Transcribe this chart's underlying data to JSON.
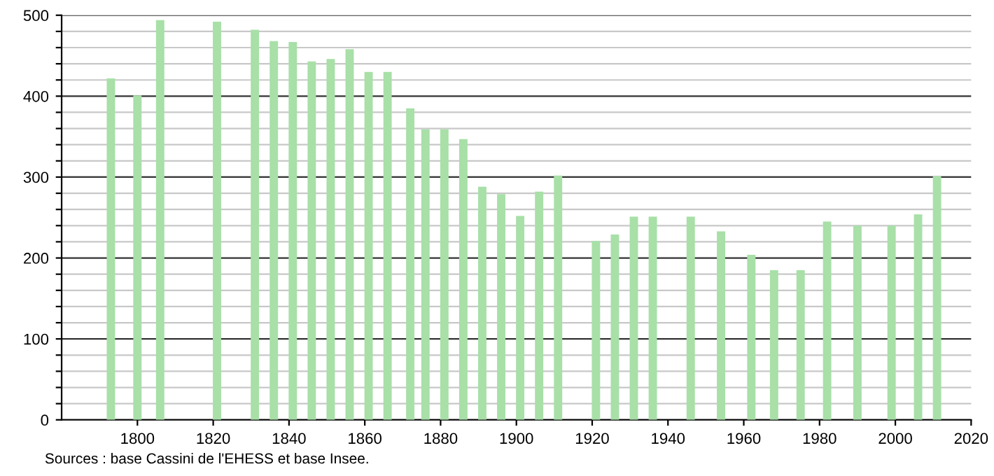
{
  "chart_data": {
    "type": "bar",
    "x": [
      1793,
      1800,
      1806,
      1821,
      1831,
      1836,
      1841,
      1846,
      1851,
      1856,
      1861,
      1866,
      1872,
      1876,
      1881,
      1886,
      1891,
      1896,
      1901,
      1906,
      1911,
      1921,
      1926,
      1931,
      1936,
      1946,
      1954,
      1962,
      1968,
      1975,
      1982,
      1990,
      1999,
      2006,
      2011
    ],
    "values": [
      422,
      401,
      494,
      492,
      482,
      468,
      467,
      443,
      446,
      458,
      430,
      430,
      385,
      359,
      359,
      347,
      288,
      279,
      252,
      282,
      302,
      221,
      229,
      251,
      251,
      251,
      233,
      204,
      185,
      185,
      245,
      240,
      240,
      254,
      301
    ],
    "color": "#a8e0a8",
    "xlim": [
      1780,
      2020
    ],
    "xticks": [
      1800,
      1820,
      1840,
      1860,
      1880,
      1900,
      1920,
      1940,
      1960,
      1980,
      2000,
      2020
    ],
    "ylim": [
      0,
      500
    ],
    "yticks": [
      0,
      {
        "value": 20,
        "label": null
      },
      {
        "value": 40,
        "label": null
      },
      {
        "value": 60,
        "label": null
      },
      {
        "value": 80,
        "label": null
      },
      100,
      {
        "value": 120,
        "label": null
      },
      {
        "value": 140,
        "label": null
      },
      {
        "value": 160,
        "label": null
      },
      {
        "value": 180,
        "label": null
      },
      200,
      {
        "value": 220,
        "label": null
      },
      {
        "value": 240,
        "label": null
      },
      {
        "value": 260,
        "label": null
      },
      {
        "value": 280,
        "label": null
      },
      300,
      {
        "value": 320,
        "label": null
      },
      {
        "value": 340,
        "label": null
      },
      {
        "value": 360,
        "label": null
      },
      {
        "value": 380,
        "label": null
      },
      400,
      {
        "value": 420,
        "label": null
      },
      {
        "value": 440,
        "label": null
      },
      {
        "value": 460,
        "label": null
      },
      {
        "value": 480,
        "label": null
      },
      500
    ],
    "grid": "y",
    "annotations": [
      "Sources : base Cassini de l'EHESS et base Insee."
    ]
  }
}
